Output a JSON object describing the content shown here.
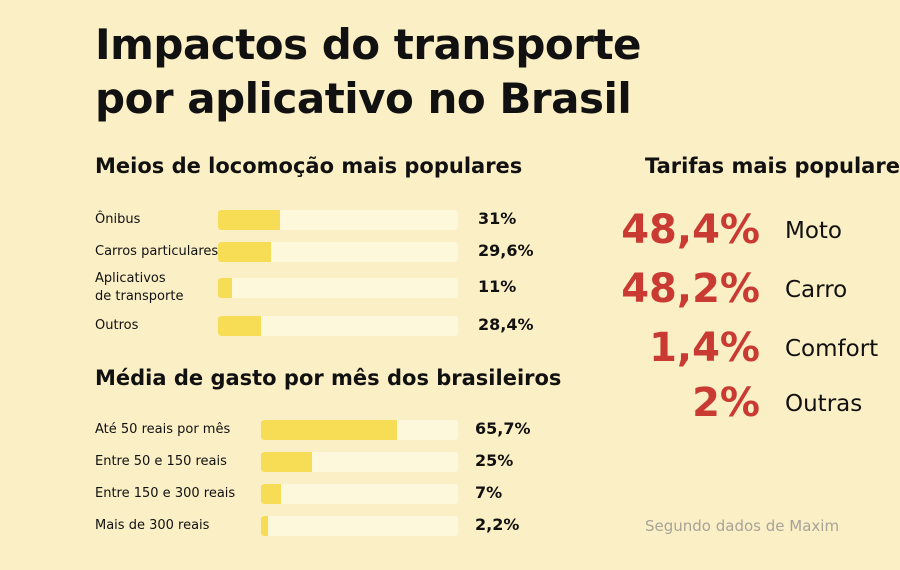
{
  "title_line1": "Impactos do transporte",
  "title_line2": "por aplicativo no Brasil",
  "chart_data": [
    {
      "type": "bar",
      "title": "Meios de locomoção mais populares",
      "categories": [
        "Ônibus",
        "Carros particulares",
        "Aplicativos\nde transporte",
        "Outros"
      ],
      "values": [
        31,
        29.6,
        11,
        28.4
      ],
      "value_labels": [
        "31%",
        "29,6%",
        "11%",
        "28,4%"
      ],
      "ylim": [
        0,
        100
      ],
      "fill_fractions": [
        0.26,
        0.22,
        0.06,
        0.18
      ]
    },
    {
      "type": "bar",
      "title": "Média de gasto por mês dos brasileiros",
      "categories": [
        "Até 50 reais por mês",
        "Entre 50 e 150 reais",
        "Entre 150 e 300 reais",
        "Mais de 300 reais"
      ],
      "values": [
        65.7,
        25,
        7,
        2.2
      ],
      "value_labels": [
        "65,7%",
        "25%",
        "7%",
        "2,2%"
      ],
      "ylim": [
        0,
        100
      ],
      "fill_fractions": [
        0.69,
        0.26,
        0.1,
        0.035
      ]
    },
    {
      "type": "table",
      "title": "Tarifas mais populares",
      "categories": [
        "Moto",
        "Carro",
        "Comfort",
        "Outras"
      ],
      "values": [
        48.4,
        48.2,
        1.4,
        2
      ],
      "value_labels": [
        "48,4%",
        "48,2%",
        "1,4%",
        "2%"
      ]
    }
  ],
  "source": "Segundo dados de Maxim",
  "colors": {
    "background": "#fbefc5",
    "bar_fill": "#f7dc55",
    "bar_track": "#fdf8dc",
    "accent": "#c83a32"
  }
}
